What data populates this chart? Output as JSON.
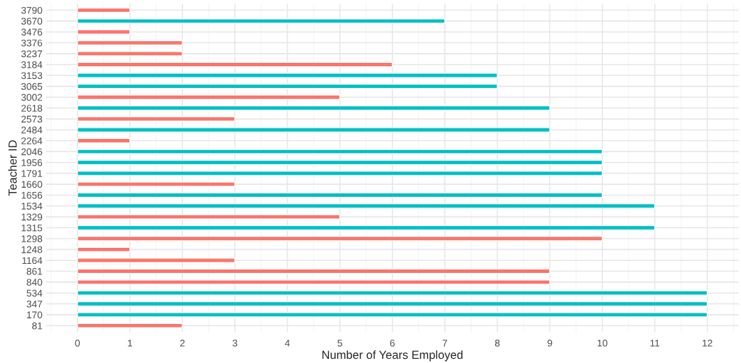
{
  "chart_data": {
    "type": "bar",
    "orientation": "horizontal",
    "xlabel": "Number of Years Employed",
    "ylabel": "Teacher ID",
    "categories": [
      "3790",
      "3670",
      "3476",
      "3376",
      "3237",
      "3184",
      "3153",
      "3065",
      "3002",
      "2618",
      "2573",
      "2484",
      "2264",
      "2046",
      "1956",
      "1791",
      "1660",
      "1656",
      "1534",
      "1329",
      "1315",
      "1298",
      "1248",
      "1164",
      "861",
      "840",
      "534",
      "347",
      "170",
      "81"
    ],
    "values": [
      1,
      7,
      1,
      2,
      2,
      6,
      8,
      8,
      5,
      9,
      3,
      9,
      1,
      10,
      10,
      10,
      3,
      10,
      11,
      5,
      11,
      10,
      1,
      3,
      9,
      9,
      12,
      12,
      12,
      2
    ],
    "colors": [
      "#f8766d",
      "#00bfc4",
      "#f8766d",
      "#f8766d",
      "#f8766d",
      "#f8766d",
      "#00bfc4",
      "#00bfc4",
      "#f8766d",
      "#00bfc4",
      "#f8766d",
      "#00bfc4",
      "#f8766d",
      "#00bfc4",
      "#00bfc4",
      "#00bfc4",
      "#f8766d",
      "#00bfc4",
      "#00bfc4",
      "#f8766d",
      "#00bfc4",
      "#f8766d",
      "#f8766d",
      "#f8766d",
      "#f8766d",
      "#f8766d",
      "#00bfc4",
      "#00bfc4",
      "#00bfc4",
      "#f8766d"
    ],
    "xlim": [
      -0.6,
      12.6
    ],
    "xticks": [
      0,
      1,
      2,
      3,
      4,
      5,
      6,
      7,
      8,
      9,
      10,
      11,
      12
    ],
    "grid": true
  }
}
